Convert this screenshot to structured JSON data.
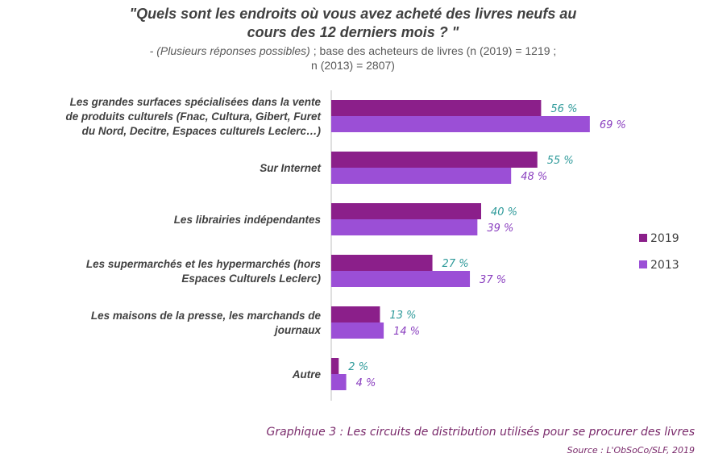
{
  "title": {
    "line1": "\"Quels sont les endroits où vous avez acheté des livres neufs au",
    "line2": "cours des 12 derniers mois ? \""
  },
  "subtitle": {
    "part1": "- (Plusieurs réponses possibles)",
    "part2": " ; base des acheteurs de livres (n (2019) = 1219 ;",
    "line2": "n (2013) = 2807)"
  },
  "caption": "Graphique 3 : Les circuits de distribution utilisés pour se procurer des livres",
  "source": "Source : L'ObSoCo/SLF, 2019",
  "colors": {
    "series_2019": "#8b1f8a",
    "series_2013": "#9b4fd6",
    "label_2019": "#2e9a9a",
    "label_2013": "#8a3fbf",
    "axis": "#bfbfbf"
  },
  "chart_data": {
    "type": "bar",
    "orientation": "horizontal",
    "categories": [
      [
        "Les grandes surfaces spécialisées dans la vente",
        "de produits culturels (Fnac, Cultura, Gibert, Furet",
        "du Nord, Decitre, Espaces culturels Leclerc…)"
      ],
      [
        "Sur Internet"
      ],
      [
        "Les librairies indépendantes"
      ],
      [
        "Les supermarchés et les hypermarchés (hors",
        "Espaces Culturels Leclerc)"
      ],
      [
        "Les maisons de la presse, les marchands de",
        "journaux"
      ],
      [
        "Autre"
      ]
    ],
    "series": [
      {
        "name": "2019",
        "values": [
          56,
          55,
          40,
          27,
          13,
          2
        ],
        "labels": [
          "56 %",
          "55 %",
          "40 %",
          "27 %",
          "13 %",
          "2 %"
        ]
      },
      {
        "name": "2013",
        "values": [
          69,
          48,
          39,
          37,
          14,
          4
        ],
        "labels": [
          "69 %",
          "48 %",
          "39 %",
          "37 %",
          "14 %",
          "4 %"
        ]
      }
    ],
    "xlim": [
      0,
      100
    ],
    "legend_position": "right",
    "grid": false
  }
}
